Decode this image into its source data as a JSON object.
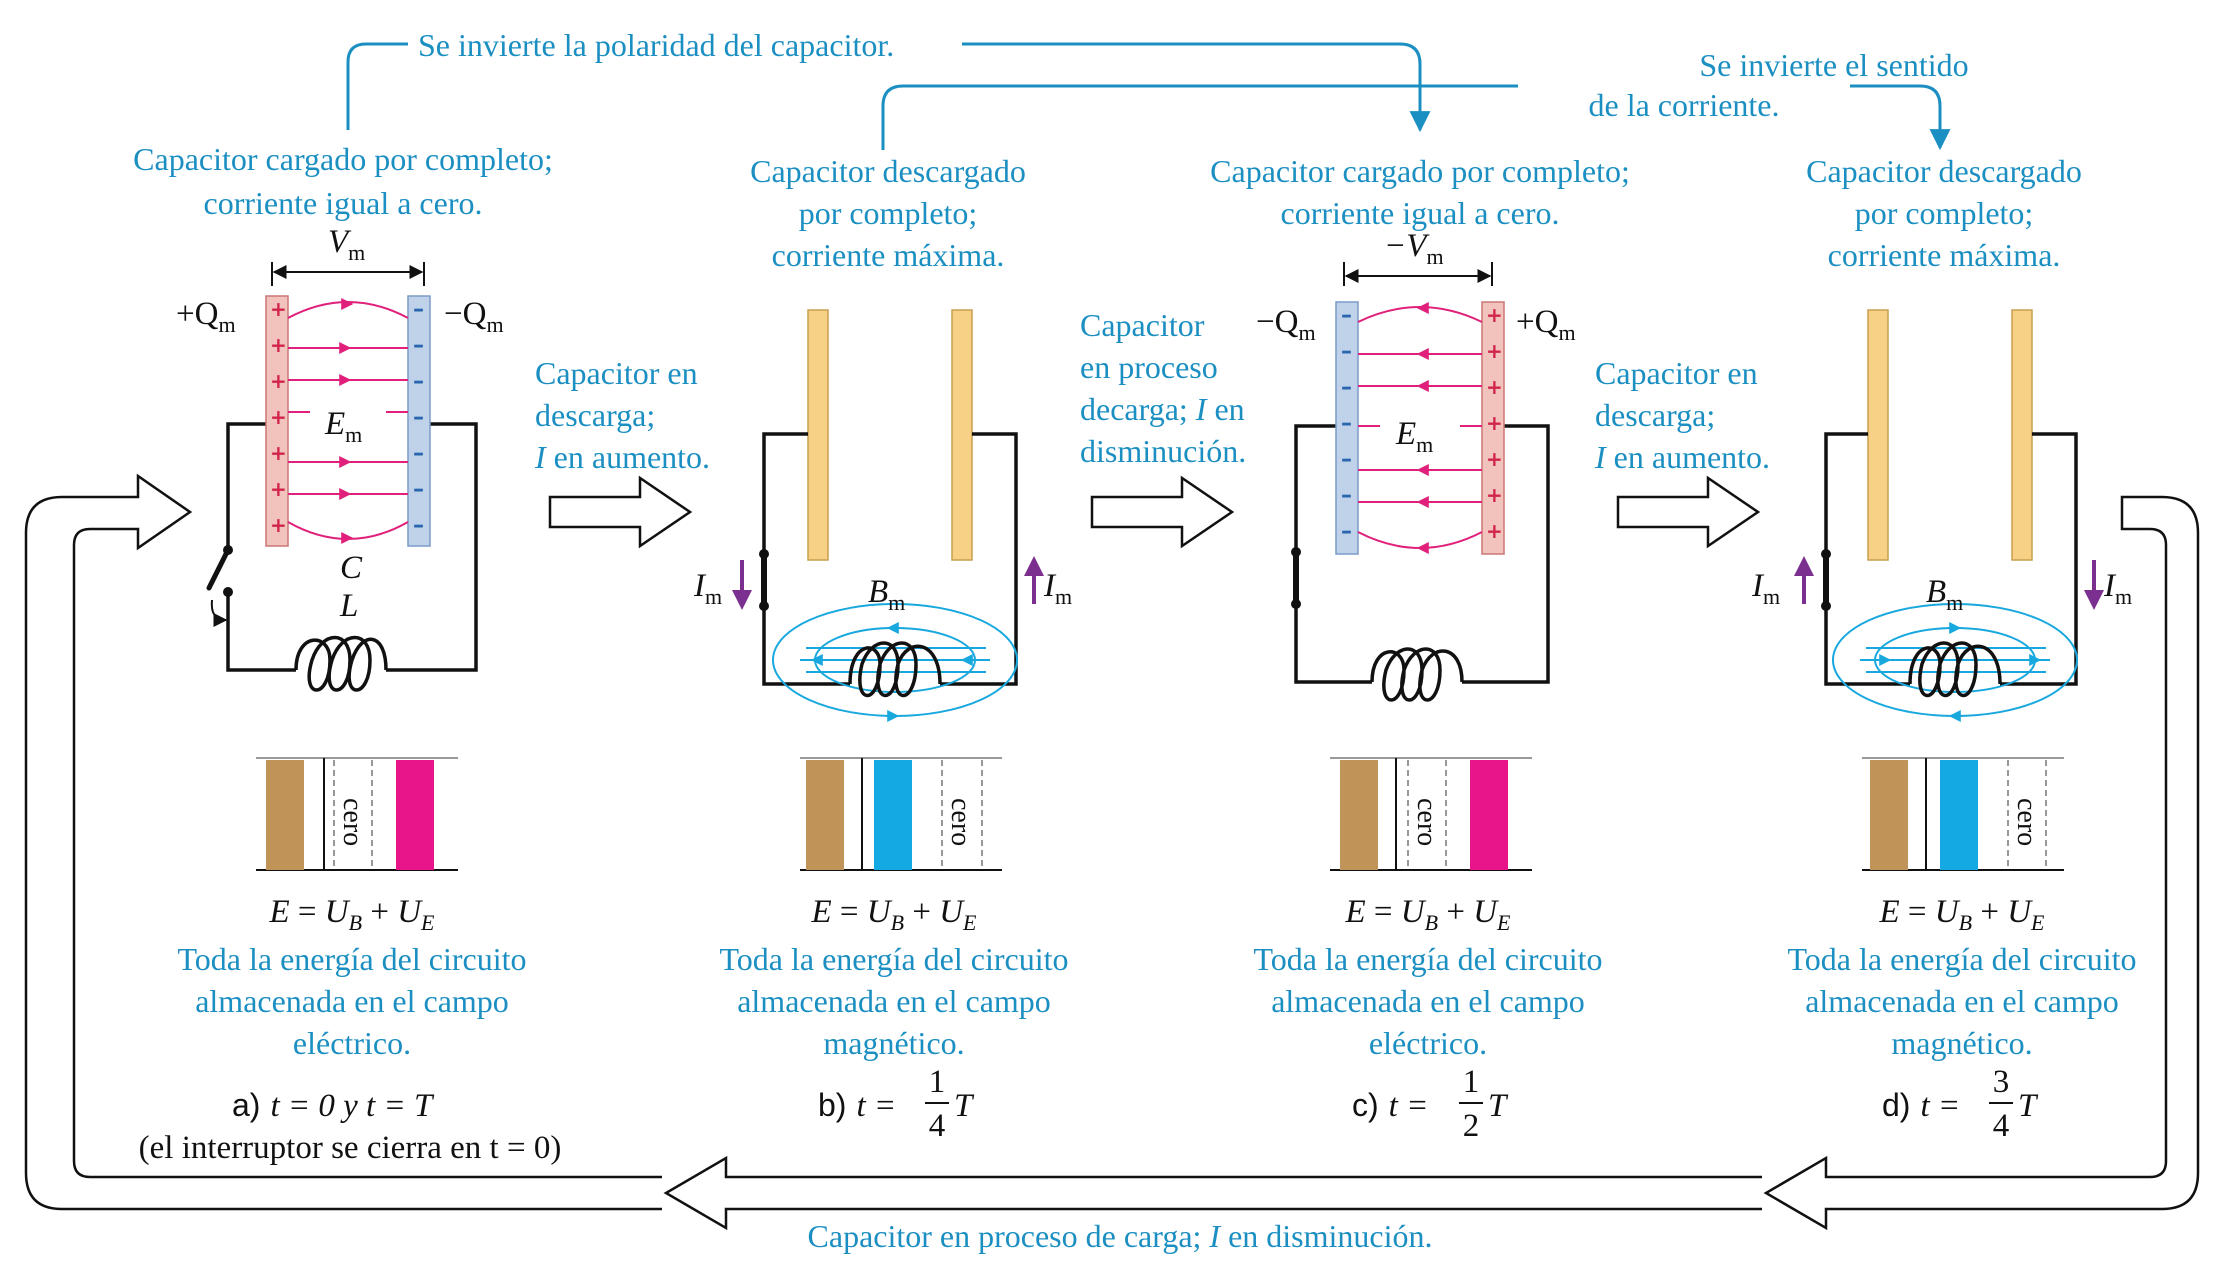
{
  "colors": {
    "caption": "#1b8fc2",
    "electric_field": "#e0207a",
    "magnetic_field": "#18a8de",
    "current_arrow": "#7b2f8f",
    "positive_plate": "#f2c2bc",
    "negative_plate": "#bfd2ea",
    "neutral_plate": "#f6d186",
    "energy_total": "#c09458",
    "energy_magnetic": "#14a9e2",
    "energy_electric": "#e8158a"
  },
  "top_notes": {
    "polarity": "Se invierte la polaridad del capacitor.",
    "current_line1": "Se invierte el sentido",
    "current_line2": "de la corriente."
  },
  "bottom_note": {
    "prefix": "Capacitor en proceso de carga; ",
    "symbol": "I",
    "suffix": " en disminución."
  },
  "transitions": [
    {
      "lines": [
        "Capacitor en",
        "descarga;"
      ],
      "current_symbol": "I",
      "current_text": " en aumento."
    },
    {
      "lines": [
        "Capacitor",
        "en proceso",
        "decarga; "
      ],
      "line3_symbol": "I",
      "line3_suffix": " en",
      "line4": "disminución."
    },
    {
      "lines": [
        "Capacitor en",
        "descarga;"
      ],
      "current_symbol": "I",
      "current_text": " en aumento."
    }
  ],
  "panels": [
    {
      "header": [
        "Capacitor cargado por completo;",
        "corriente igual a cero."
      ],
      "voltage_label": "V",
      "voltage_sub": "m",
      "left_charge": "+Q",
      "right_charge": "−Q",
      "charge_sub": "m",
      "field_label": "E",
      "field_sub": "m",
      "cap_label": "C",
      "ind_label": "L",
      "energy_zero": "cero",
      "equation": {
        "E": "E",
        "eq": " = ",
        "UB": "U",
        "B": "B",
        "plus": " + ",
        "UE": "U",
        "Esub": "E"
      },
      "energy_text": [
        "Toda la energía del circuito",
        "almacenada en el campo",
        "eléctrico."
      ],
      "label_letter": "a)",
      "label_time": "t = 0 y t = T",
      "label_note": "(el interruptor se cierra en t = 0)"
    },
    {
      "header": [
        "Capacitor descargado",
        "por completo;",
        "corriente máxima."
      ],
      "current_label": "I",
      "current_sub": "m",
      "field_label": "B",
      "field_sub": "m",
      "energy_zero": "cero",
      "energy_text": [
        "Toda la energía del circuito",
        "almacenada en el campo",
        "magnético."
      ],
      "label_letter": "b)",
      "label_t": "t = ",
      "frac_num": "1",
      "frac_den": "4",
      "frac_T": "T"
    },
    {
      "header": [
        "Capacitor cargado por completo;",
        "corriente igual a cero."
      ],
      "voltage_label": "−V",
      "voltage_sub": "m",
      "left_charge": "−Q",
      "right_charge": "+Q",
      "charge_sub": "m",
      "field_label": "E",
      "field_sub": "m",
      "energy_zero": "cero",
      "energy_text": [
        "Toda la energía del circuito",
        "almacenada en el campo",
        "eléctrico."
      ],
      "label_letter": "c)",
      "label_t": "t = ",
      "frac_num": "1",
      "frac_den": "2",
      "frac_T": "T"
    },
    {
      "header": [
        "Capacitor descargado",
        "por completo;",
        "corriente máxima."
      ],
      "current_label": "I",
      "current_sub": "m",
      "field_label": "B",
      "field_sub": "m",
      "energy_zero": "cero",
      "energy_text": [
        "Toda la energía del circuito",
        "almacenada en el campo",
        "magnético."
      ],
      "label_letter": "d)",
      "label_t": "t = ",
      "frac_num": "3",
      "frac_den": "4",
      "frac_T": "T"
    }
  ]
}
